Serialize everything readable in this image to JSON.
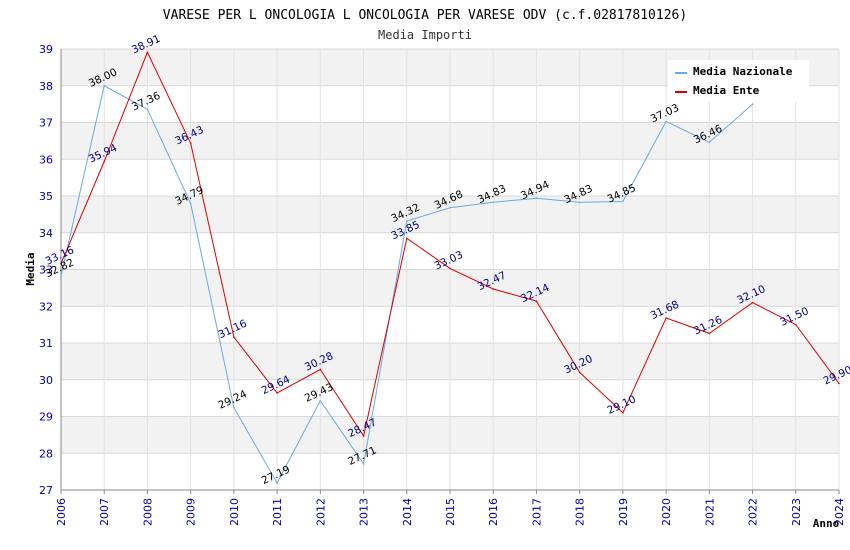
{
  "chart_data": {
    "type": "line",
    "title": "VARESE PER L ONCOLOGIA L ONCOLOGIA PER VARESE ODV (c.f.02817810126)",
    "subtitle": "Media Importi",
    "xlabel": "Anno",
    "ylabel": "Media",
    "ylim": [
      27,
      39
    ],
    "yticks": [
      "27",
      "28",
      "29",
      "30",
      "31",
      "32",
      "33",
      "34",
      "35",
      "36",
      "37",
      "38",
      "39"
    ],
    "categories": [
      "2006",
      "2007",
      "2008",
      "2009",
      "2010",
      "2011",
      "2012",
      "2013",
      "2014",
      "2015",
      "2016",
      "2017",
      "2018",
      "2019",
      "2020",
      "2021",
      "2022",
      "2023",
      "2024"
    ],
    "grid": true,
    "legend_position": "top-right",
    "series": [
      {
        "name": "Media Nazionale",
        "color": "#6aa8e8",
        "values": [
          32.82,
          38.0,
          37.36,
          34.79,
          29.24,
          27.19,
          29.43,
          27.71,
          34.32,
          34.68,
          34.83,
          34.94,
          34.83,
          34.85,
          37.03,
          36.46,
          37.5,
          null,
          null
        ],
        "labels": [
          "32.82",
          "38.00",
          "37.36",
          "34.79",
          "29.24",
          "27.19",
          "29.43",
          "27.71",
          "34.32",
          "34.68",
          "34.83",
          "34.94",
          "34.83",
          "34.85",
          "37.03",
          "36.46",
          "",
          "",
          ""
        ]
      },
      {
        "name": "Media Ente",
        "color": "#dd0000",
        "values": [
          33.16,
          35.94,
          38.91,
          36.43,
          31.16,
          29.64,
          30.28,
          28.47,
          33.85,
          33.03,
          32.47,
          32.14,
          30.2,
          29.1,
          31.68,
          31.26,
          32.1,
          31.5,
          29.9
        ],
        "labels": [
          "33.16",
          "35.94",
          "38.91",
          "36.43",
          "31.16",
          "29.64",
          "30.28",
          "28.47",
          "33.85",
          "33.03",
          "32.47",
          "32.14",
          "30.20",
          "29.10",
          "31.68",
          "31.26",
          "32.10",
          "31.50",
          "29.90"
        ]
      }
    ]
  }
}
